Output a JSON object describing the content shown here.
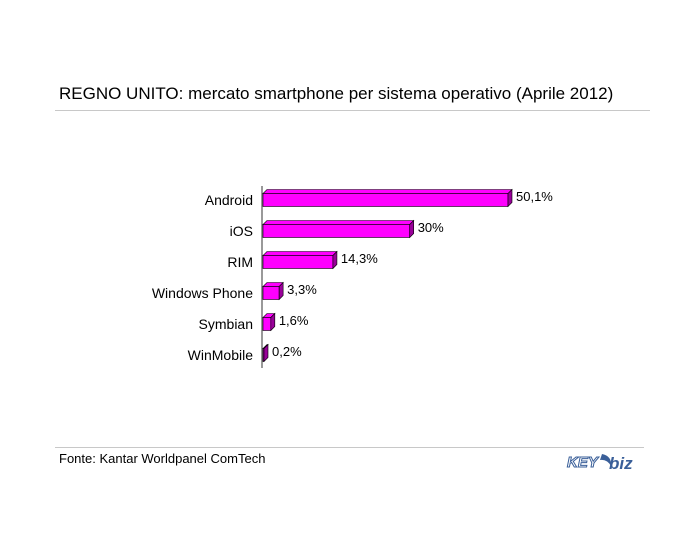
{
  "chart_data": {
    "type": "bar",
    "orientation": "horizontal",
    "title": "REGNO UNITO: mercato smartphone per sistema operativo (Aprile 2012)",
    "categories": [
      "Android",
      "iOS",
      "RIM",
      "Windows Phone",
      "Symbian",
      "WinMobile"
    ],
    "values": [
      50.1,
      30,
      14.3,
      3.3,
      1.6,
      0.2
    ],
    "value_labels": [
      "50,1%",
      "30%",
      "14,3%",
      "3,3%",
      "1,6%",
      "0,2%"
    ],
    "xlim": [
      0,
      51
    ],
    "grid": false,
    "bar_color": "#ff00ff",
    "bar_side_color": "#990099"
  },
  "source_text": "Fonte: Kantar Worldpanel ComTech",
  "logo": {
    "part1": "KEY",
    "part2": "biz"
  }
}
